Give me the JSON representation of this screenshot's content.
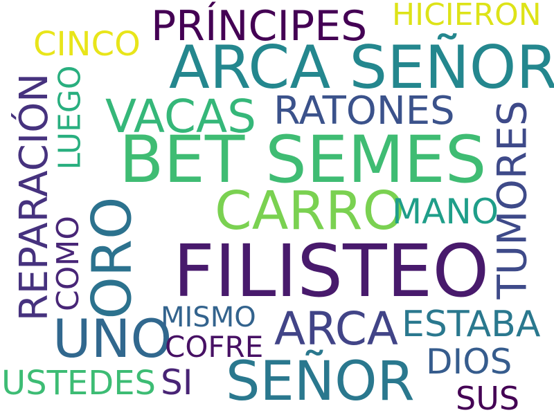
{
  "words": {
    "filisteo": {
      "text": "FILISTEO",
      "color": "#481a6c"
    },
    "bet_semes": {
      "text": "BET SEMES",
      "color": "#3fbc73"
    },
    "arca_senor": {
      "text": "ARCA SEÑOR",
      "color": "#24878e"
    },
    "carro": {
      "text": "CARRO",
      "color": "#7ad151"
    },
    "senor": {
      "text": "SEÑOR",
      "color": "#2a788e"
    },
    "oro": {
      "text": "ORO",
      "color": "#2c728e"
    },
    "uno": {
      "text": "UNO",
      "color": "#31688e"
    },
    "vacas": {
      "text": "VACAS",
      "color": "#35b779"
    },
    "principes": {
      "text": "PRÍNCIPES",
      "color": "#440154"
    },
    "ratones": {
      "text": "RATONES",
      "color": "#3b528b"
    },
    "arca": {
      "text": "ARCA",
      "color": "#414487"
    },
    "tumores": {
      "text": "TUMORES",
      "color": "#3e4a89"
    },
    "reparacion": {
      "text": "REPARACIÓN",
      "color": "#46327e"
    },
    "estaba": {
      "text": "ESTABA",
      "color": "#2a788e"
    },
    "mano": {
      "text": "MANO",
      "color": "#1f9e89"
    },
    "luego": {
      "text": "LUEGO",
      "color": "#29af7f"
    },
    "dios": {
      "text": "DIOS",
      "color": "#365c8d"
    },
    "cinco": {
      "text": "CINCO",
      "color": "#e8e51a"
    },
    "hicieron": {
      "text": "HICIERON",
      "color": "#dde318"
    },
    "como": {
      "text": "COMO",
      "color": "#482677"
    },
    "ustedes": {
      "text": "USTEDES",
      "color": "#3dbc74"
    },
    "mismo": {
      "text": "MISMO",
      "color": "#33638d"
    },
    "cofre": {
      "text": "COFRE",
      "color": "#471164"
    },
    "si": {
      "text": "SI",
      "color": "#482475"
    },
    "sus": {
      "text": "SUS",
      "color": "#440154"
    }
  }
}
